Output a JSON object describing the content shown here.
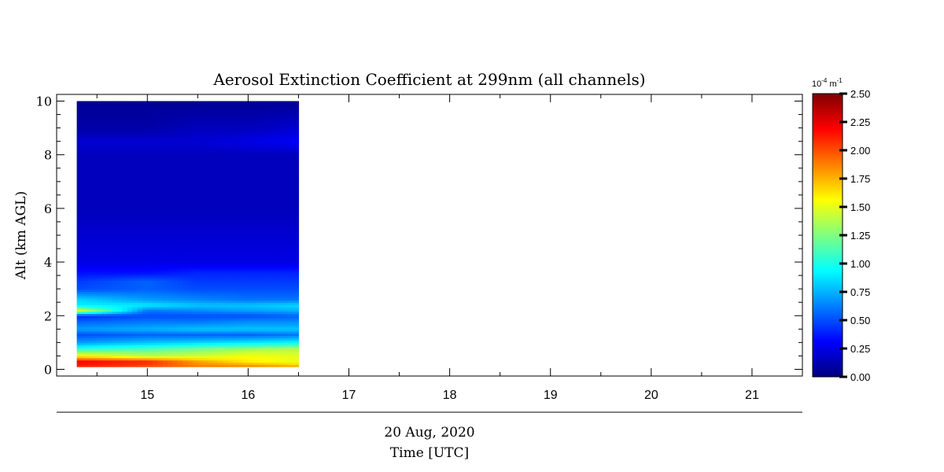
{
  "chart_data": {
    "type": "heatmap",
    "title": "Aerosol Extinction Coefficient at 299nm (all channels)",
    "ylabel": "Alt (km AGL)",
    "xlabel": "Time [UTC]",
    "date_label": "20 Aug, 2020",
    "x_ticks": [
      "15",
      "16",
      "17",
      "18",
      "19",
      "20",
      "21"
    ],
    "y_ticks": [
      "0",
      "2",
      "4",
      "6",
      "8",
      "10"
    ],
    "xlim": [
      14.1,
      21.5
    ],
    "ylim": [
      -0.25,
      10.25
    ],
    "data_time_range": [
      14.3,
      16.5
    ],
    "data_alt_range": [
      0.1,
      10.0
    ],
    "colorbar": {
      "unit_base": "10",
      "unit_exp": "-4",
      "unit_suffix": "m",
      "unit_suffix_exp": "-1",
      "ticks": [
        "0.00",
        "0.25",
        "0.50",
        "0.75",
        "1.00",
        "1.25",
        "1.50",
        "1.75",
        "2.00",
        "2.25",
        "2.50"
      ],
      "range": [
        0,
        2.5
      ],
      "colormap": "jet"
    },
    "profile_times": [
      14.3,
      15.0,
      15.5,
      16.0,
      16.5
    ],
    "profile_alts": [
      0.1,
      0.3,
      0.5,
      0.8,
      1.0,
      1.3,
      1.5,
      1.8,
      2.0,
      2.2,
      2.4,
      2.6,
      3.0,
      3.3,
      3.6,
      4.0,
      5.0,
      6.0,
      7.0,
      8.0,
      8.5,
      9.0,
      10.0
    ],
    "profiles": [
      [
        2.1,
        2.2,
        1.6,
        1.0,
        0.7,
        0.5,
        0.7,
        0.55,
        0.4,
        1.5,
        0.9,
        0.85,
        0.5,
        0.45,
        0.35,
        0.25,
        0.2,
        0.15,
        0.15,
        0.15,
        0.2,
        0.1,
        0.05
      ],
      [
        2.0,
        2.1,
        1.4,
        1.1,
        0.8,
        0.55,
        0.75,
        0.6,
        0.5,
        0.6,
        0.9,
        0.7,
        0.55,
        0.55,
        0.35,
        0.25,
        0.2,
        0.15,
        0.15,
        0.15,
        0.2,
        0.1,
        0.05
      ],
      [
        1.9,
        1.8,
        1.45,
        1.2,
        0.85,
        0.55,
        0.8,
        0.6,
        0.5,
        0.65,
        0.8,
        0.65,
        0.5,
        0.45,
        0.4,
        0.25,
        0.2,
        0.15,
        0.15,
        0.15,
        0.2,
        0.15,
        0.05
      ],
      [
        1.9,
        1.6,
        1.55,
        1.3,
        0.9,
        0.55,
        0.8,
        0.65,
        0.5,
        0.7,
        0.8,
        0.6,
        0.5,
        0.45,
        0.4,
        0.25,
        0.2,
        0.15,
        0.15,
        0.15,
        0.25,
        0.15,
        0.05
      ],
      [
        1.8,
        1.5,
        1.5,
        1.35,
        0.95,
        0.6,
        0.8,
        0.65,
        0.55,
        0.75,
        0.85,
        0.6,
        0.5,
        0.45,
        0.4,
        0.25,
        0.2,
        0.15,
        0.15,
        0.15,
        0.3,
        0.2,
        0.05
      ]
    ]
  }
}
